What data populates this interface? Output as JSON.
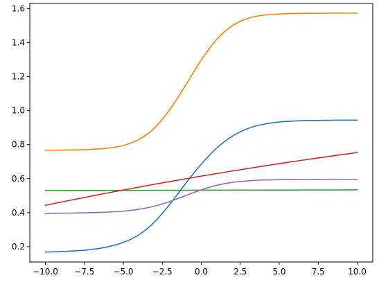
{
  "chart_data": {
    "type": "line",
    "title": "",
    "xlabel": "",
    "ylabel": "",
    "xlim": [
      -11.0,
      11.0
    ],
    "ylim": [
      0.11,
      1.63
    ],
    "grid": false,
    "legend": "none",
    "xticks": [
      -10.0,
      -7.5,
      -5.0,
      -2.5,
      0.0,
      2.5,
      5.0,
      7.5,
      10.0
    ],
    "xtick_labels": [
      "−10.0",
      "−7.5",
      "−5.0",
      "−2.5",
      "0.0",
      "2.5",
      "5.0",
      "7.5",
      "10.0"
    ],
    "yticks": [
      0.2,
      0.4,
      0.6,
      0.8,
      1.0,
      1.2,
      1.4,
      1.6
    ],
    "ytick_labels": [
      "0.2",
      "0.4",
      "0.6",
      "0.8",
      "1.0",
      "1.2",
      "1.4",
      "1.6"
    ],
    "x": [
      -10,
      -9,
      -8,
      -7,
      -6,
      -5,
      -4,
      -3,
      -2,
      -1,
      0,
      1,
      2,
      3,
      4,
      5,
      6,
      7,
      8,
      9,
      10
    ],
    "series": [
      {
        "color": "#1f77b4",
        "values": [
          0.168,
          0.171,
          0.176,
          0.184,
          0.199,
          0.225,
          0.27,
          0.345,
          0.451,
          0.572,
          0.685,
          0.781,
          0.85,
          0.895,
          0.92,
          0.933,
          0.939,
          0.942,
          0.943,
          0.944,
          0.944
        ]
      },
      {
        "color": "#ff7f0e",
        "values": [
          0.767,
          0.768,
          0.769,
          0.772,
          0.779,
          0.795,
          0.83,
          0.898,
          1.008,
          1.15,
          1.298,
          1.42,
          1.5,
          1.543,
          1.561,
          1.568,
          1.571,
          1.572,
          1.573,
          1.573,
          1.573
        ]
      },
      {
        "color": "#2ca02c",
        "values": [
          0.53,
          0.5302,
          0.5304,
          0.5306,
          0.5308,
          0.531,
          0.5312,
          0.5314,
          0.5316,
          0.5318,
          0.532,
          0.5322,
          0.5324,
          0.5326,
          0.5328,
          0.533,
          0.5332,
          0.5334,
          0.5336,
          0.5338,
          0.534
        ]
      },
      {
        "color": "#d62728",
        "values": [
          0.443,
          0.462,
          0.48,
          0.498,
          0.516,
          0.533,
          0.55,
          0.567,
          0.583,
          0.599,
          0.615,
          0.63,
          0.645,
          0.66,
          0.674,
          0.688,
          0.702,
          0.715,
          0.728,
          0.741,
          0.753
        ]
      },
      {
        "color": "#9467bd",
        "values": [
          0.396,
          0.397,
          0.398,
          0.4,
          0.403,
          0.409,
          0.42,
          0.438,
          0.466,
          0.5,
          0.534,
          0.561,
          0.578,
          0.587,
          0.592,
          0.594,
          0.595,
          0.595,
          0.596,
          0.596,
          0.596
        ]
      }
    ]
  }
}
